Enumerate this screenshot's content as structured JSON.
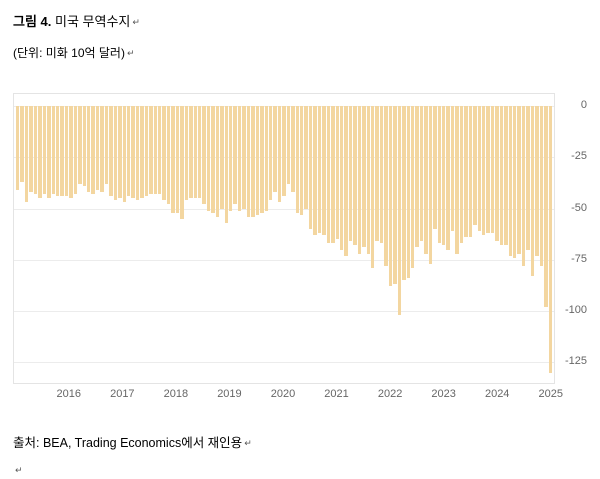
{
  "doc": {
    "figure_label": "그림 4.",
    "figure_title": " 미국 무역수지",
    "unit": "(단위: 미화 10억 달러)",
    "source": "출처: BEA, Trading Economics에서 재인용",
    "line_break_mark": "↵"
  },
  "chart_data": {
    "type": "bar",
    "title": "미국 무역수지",
    "unit": "미화 10억 달러",
    "bar_color": "#f3d6a0",
    "grid_color": "#ececec",
    "axis_text_color": "#666666",
    "ylim": [
      -135,
      0
    ],
    "y_ticks": [
      0,
      -25,
      -50,
      -75,
      -100,
      -125
    ],
    "x_year_labels": [
      "2016",
      "2017",
      "2018",
      "2019",
      "2020",
      "2021",
      "2022",
      "2023",
      "2024",
      "2025"
    ],
    "series": [
      {
        "year": "2015",
        "values": [
          -41,
          -37,
          -47,
          -42,
          -43,
          -45,
          -43,
          -45,
          -43,
          -44,
          -44,
          -44
        ]
      },
      {
        "year": "2016",
        "values": [
          -45,
          -43,
          -38,
          -39,
          -42,
          -43,
          -41,
          -42,
          -38,
          -44,
          -46,
          -45
        ]
      },
      {
        "year": "2017",
        "values": [
          -47,
          -44,
          -45,
          -46,
          -45,
          -44,
          -43,
          -43,
          -43,
          -46,
          -48,
          -52
        ]
      },
      {
        "year": "2018",
        "values": [
          -52,
          -55,
          -46,
          -45,
          -45,
          -45,
          -48,
          -51,
          -52,
          -54,
          -50,
          -57
        ]
      },
      {
        "year": "2019",
        "values": [
          -51,
          -48,
          -51,
          -50,
          -54,
          -54,
          -53,
          -52,
          -51,
          -46,
          -42,
          -47
        ]
      },
      {
        "year": "2020",
        "values": [
          -44,
          -38,
          -42,
          -52,
          -53,
          -50,
          -60,
          -63,
          -62,
          -63,
          -67,
          -67
        ]
      },
      {
        "year": "2021",
        "values": [
          -65,
          -70,
          -73,
          -66,
          -68,
          -72,
          -69,
          -72,
          -79,
          -66,
          -67,
          -78
        ]
      },
      {
        "year": "2022",
        "values": [
          -88,
          -87,
          -102,
          -85,
          -84,
          -79,
          -69,
          -66,
          -72,
          -77,
          -60,
          -67
        ]
      },
      {
        "year": "2023",
        "values": [
          -68,
          -70,
          -61,
          -72,
          -67,
          -64,
          -64,
          -58,
          -61,
          -63,
          -62,
          -62
        ]
      },
      {
        "year": "2024",
        "values": [
          -66,
          -68,
          -68,
          -73,
          -74,
          -72,
          -78,
          -70,
          -83,
          -73,
          -78,
          -98
        ]
      },
      {
        "year": "2025",
        "values": [
          -130
        ]
      }
    ]
  }
}
